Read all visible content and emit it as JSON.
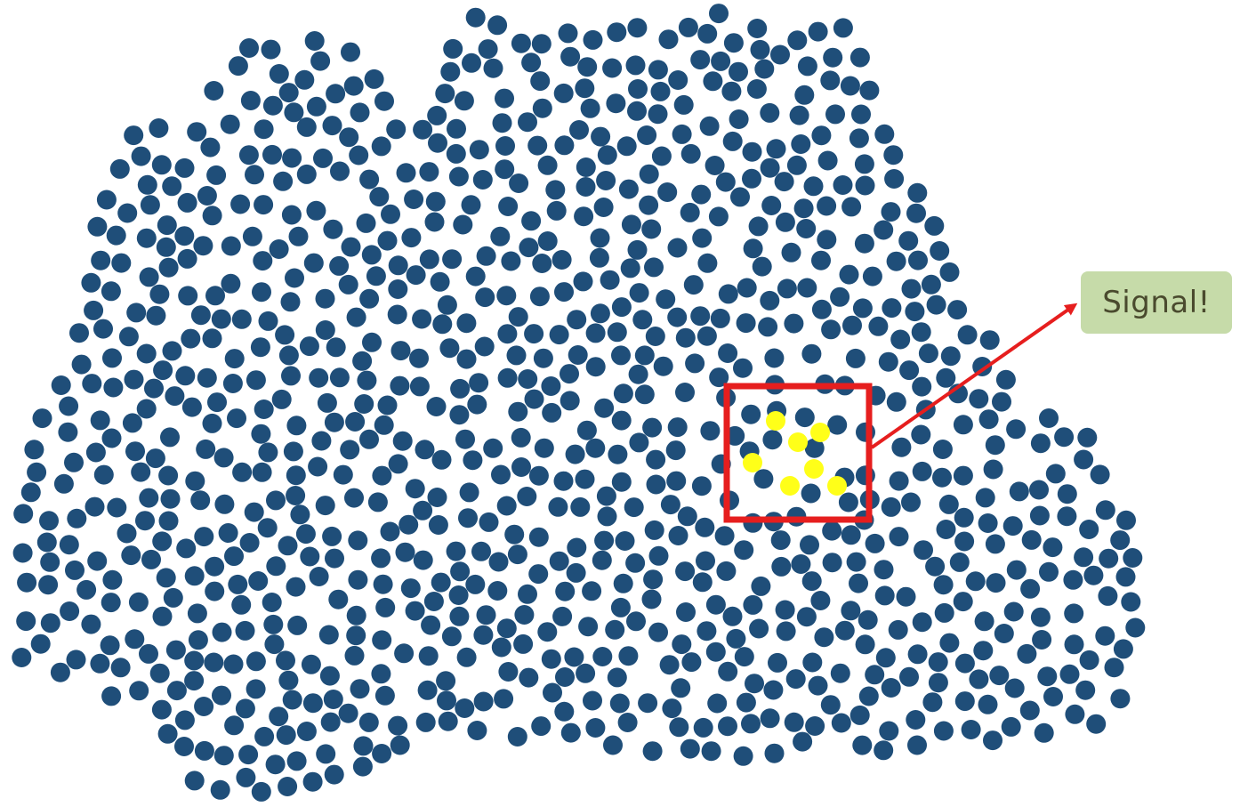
{
  "diagram": {
    "background_dot_color": "#1f4e79",
    "signal_dot_color": "#ffff19",
    "highlight_box_color": "#e61e1e",
    "arrow_color": "#e61e1e",
    "label_bg_color": "#c6dba9",
    "label_text_color": "#4a4a2e",
    "label_text": "Signal!"
  }
}
